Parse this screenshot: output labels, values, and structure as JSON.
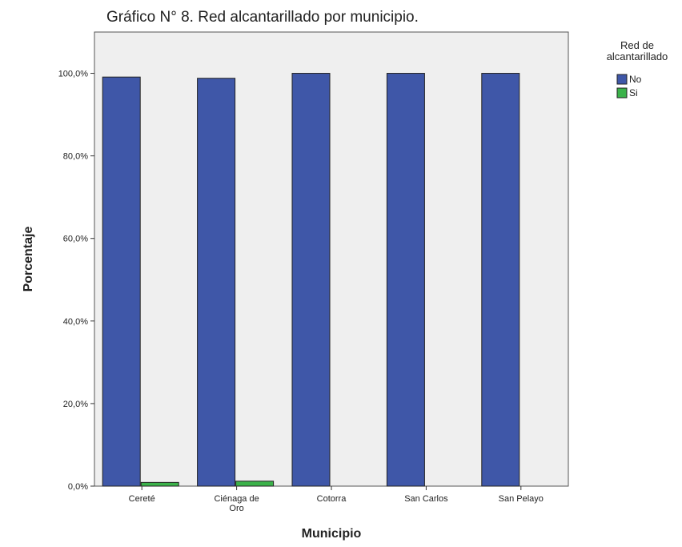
{
  "title": "Gráfico N° 8. Red alcantarillado por municipio.",
  "chart_data": {
    "type": "bar",
    "xlabel": "Municipio",
    "ylabel": "Porcentaje",
    "ylim": [
      0,
      110
    ],
    "yticks": [
      "0,0%",
      "20,0%",
      "40,0%",
      "60,0%",
      "80,0%",
      "100,0%"
    ],
    "categories": [
      [
        "Cereté"
      ],
      [
        "Ciénaga de",
        "Oro"
      ],
      [
        "Cotorra"
      ],
      [
        "San Carlos"
      ],
      [
        "San Pelayo"
      ]
    ],
    "series": [
      {
        "name": "No",
        "color": "#3f57a8",
        "values": [
          99.1,
          98.8,
          100,
          100,
          100
        ]
      },
      {
        "name": "Si",
        "color": "#3bb24a",
        "values": [
          0.9,
          1.2,
          0,
          0,
          0
        ]
      }
    ],
    "legend": {
      "title": [
        "Red de",
        "alcantarillado"
      ],
      "position": "top-right"
    },
    "grid": false,
    "plot_background": "#efefef"
  }
}
